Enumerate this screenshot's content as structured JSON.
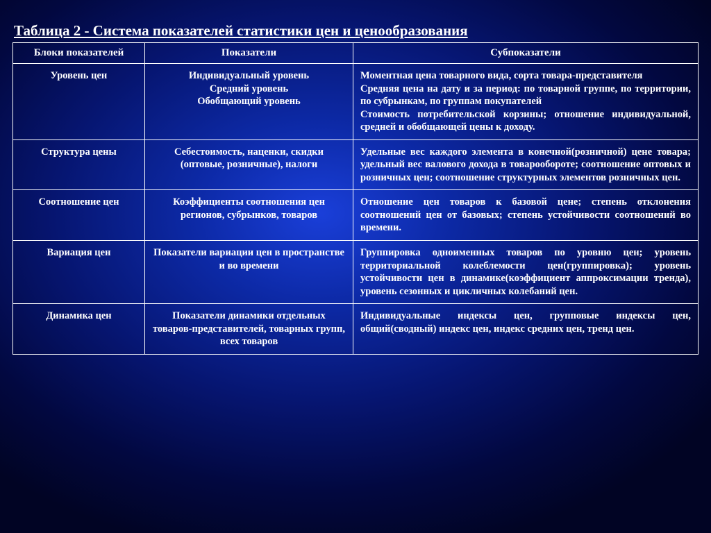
{
  "title": "Таблица 2 - Система показателей статистики цен и ценообразования",
  "headers": {
    "h1": "Блоки показателей",
    "h2": "Показатели",
    "h3": "Субпоказатели"
  },
  "rows": [
    {
      "c1": "Уровень цен",
      "c2": "Индивидуальный уровень\nСредний уровень\nОбобщающий уровень",
      "c3": "Моментная цена товарного вида, сорта товара-представителя\nСредняя цена на дату и за период: по товарной группе, по территории, по субрынкам, по группам покупателей\nСтоимость потребительской корзины; отношение индивидуальной, средней и обобщающей цены к доходу."
    },
    {
      "c1": "Структура цены",
      "c2": "Себестоимость, наценки, скидки (оптовые, розничные), налоги",
      "c3": "Удельные вес каждого элемента в конечной(розничной) цене товара; удельный вес валового дохода в товарообороте; соотношение оптовых и розничных цен; соотношение структурных элементов розничных цен."
    },
    {
      "c1": "Соотношение цен",
      "c2": "Коэффициенты соотношения цен регионов, субрынков, товаров",
      "c3": "Отношение цен товаров к базовой цене; степень отклонения соотношений цен от базовых; степень устойчивости соотношений во времени."
    },
    {
      "c1": "Вариация цен",
      "c2": "Показатели вариации цен в пространстве и во времени",
      "c3": "Группировка одноименных товаров по уровню цен; уровень территориальной колеблемости цен(группировка); уровень устойчивости цен в динамике(коэффициент аппроксимации тренда), уровень сезонных и цикличных колебаний цен."
    },
    {
      "c1": "Динамика цен",
      "c2": "Показатели динамики отдельных товаров-представителей, товарных групп, всех товаров",
      "c3": "Индивидуальные индексы цен, групповые индексы цен, общий(сводный) индекс цен, индекс средних цен, тренд цен."
    }
  ]
}
